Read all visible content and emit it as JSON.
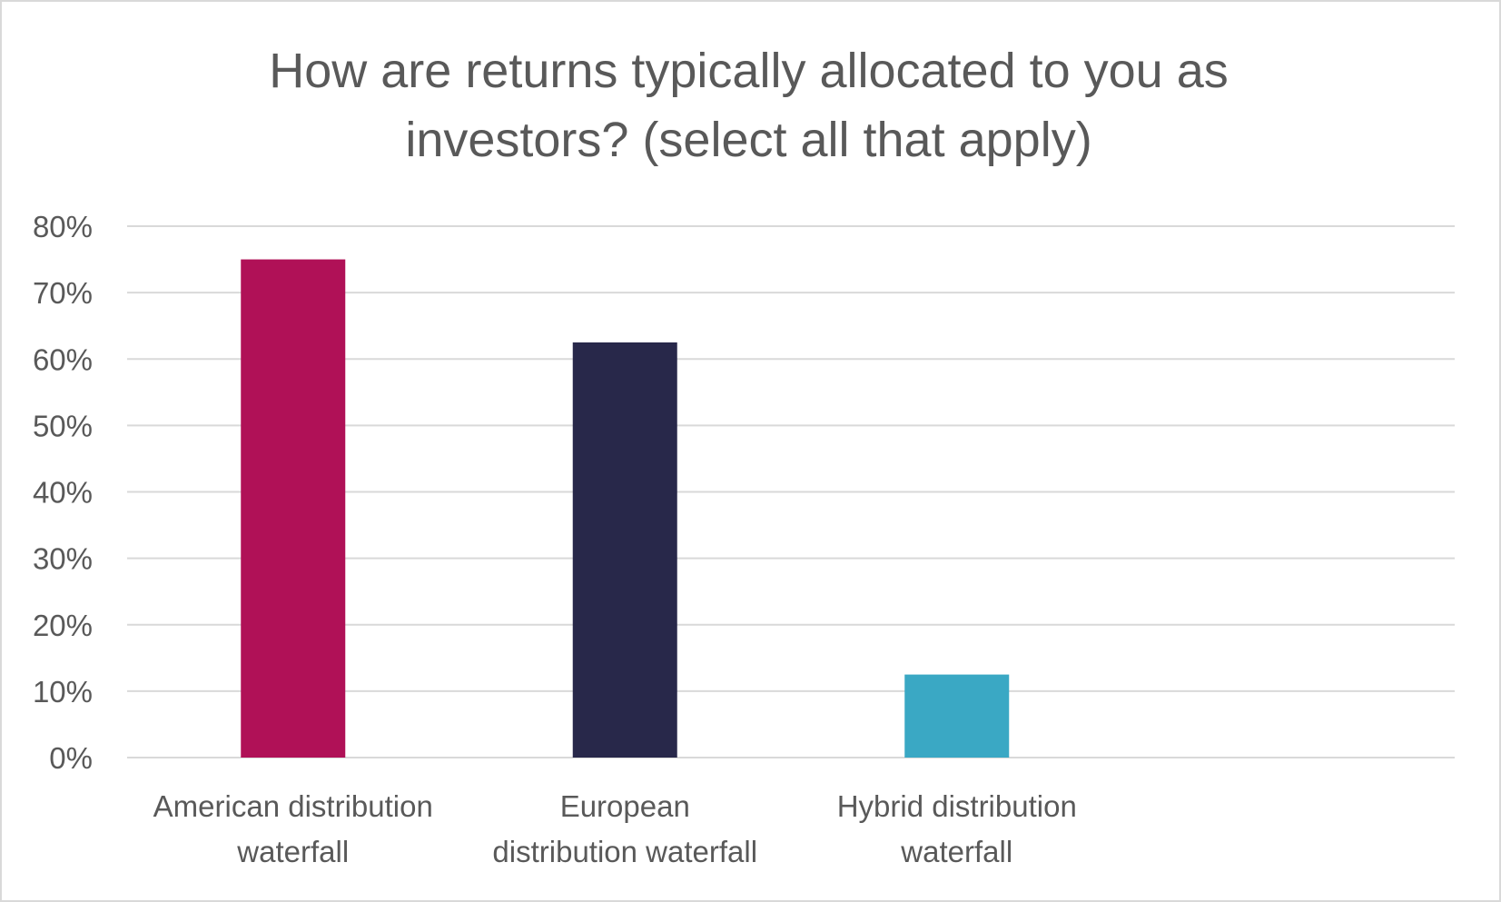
{
  "chart_data": {
    "type": "bar",
    "title": "How are returns typically allocated to you as\ninvestors? (select all that apply)",
    "categories": [
      "American distribution waterfall",
      "European distribution waterfall",
      "Hybrid distribution waterfall",
      ""
    ],
    "category_label_lines": [
      [
        "American distribution",
        "waterfall"
      ],
      [
        "European",
        "distribution waterfall"
      ],
      [
        "Hybrid distribution",
        "waterfall"
      ],
      []
    ],
    "values": [
      0.75,
      0.625,
      0.125,
      null
    ],
    "colors": [
      "#b01157",
      "#28284a",
      "#3aa8c4",
      null
    ],
    "ylim": [
      0,
      0.8
    ],
    "yticks": [
      0,
      0.1,
      0.2,
      0.3,
      0.4,
      0.5,
      0.6,
      0.7,
      0.8
    ],
    "ytick_labels": [
      "0%",
      "10%",
      "20%",
      "30%",
      "40%",
      "50%",
      "60%",
      "70%",
      "80%"
    ],
    "grid": true,
    "gridline_color": "#d9d9d9",
    "text_color": "#595959",
    "xlabel": "",
    "ylabel": ""
  }
}
